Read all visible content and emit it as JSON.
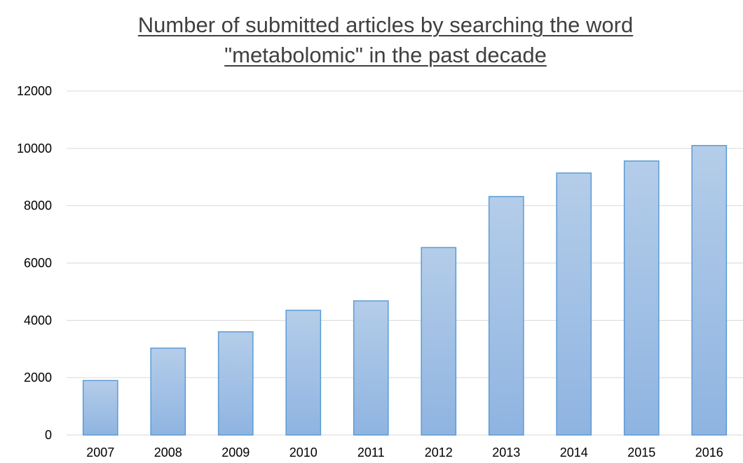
{
  "chart_data": {
    "type": "bar",
    "title": "Number of submitted articles by searching the word \"metabolomic\" in the past decade",
    "title_lines": [
      "Number of submitted articles by searching the word",
      "\"metabolomic\" in the past decade"
    ],
    "xlabel": "",
    "ylabel": "",
    "categories": [
      "2007",
      "2008",
      "2009",
      "2010",
      "2011",
      "2012",
      "2013",
      "2014",
      "2015",
      "2016"
    ],
    "values": [
      1900,
      3030,
      3600,
      4350,
      4680,
      6540,
      8320,
      9140,
      9560,
      10100
    ],
    "ylim": [
      0,
      12000
    ],
    "yticks": [
      "0",
      "2000",
      "4000",
      "6000",
      "8000",
      "10000",
      "12000"
    ],
    "grid": true,
    "legend": "none",
    "colors": {
      "bar_top": "#b4cde9",
      "bar_bottom": "#8fb4e1",
      "bar_stroke": "#5b9bd5",
      "grid": "#d9d9d9",
      "title": "#404040"
    }
  }
}
